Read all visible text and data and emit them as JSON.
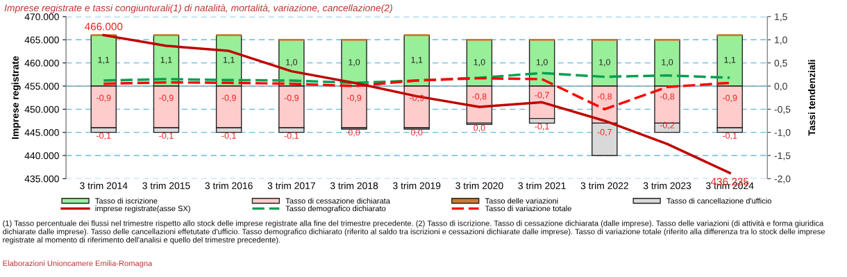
{
  "chart_data": {
    "type": "bar",
    "stacked": true,
    "title": "Imprese registrate e tassi congiunturali(1) di natalità, mortalità, variazione, cancellazione(2)",
    "ylabel": "Imprese registrate",
    "y2label": "Tassi tendenziali",
    "categories": [
      "3 trim 2014",
      "3 trim 2015",
      "3 trim 2016",
      "3 trim 2017",
      "3 trim 2018",
      "3 trim 2019",
      "3 trim 2020",
      "3 trim 2021",
      "3 trim 2022",
      "3 trim 2023",
      "3 trim 2024"
    ],
    "series": [
      {
        "name": "Tasso di iscrizione",
        "axis": "y2",
        "color": "#99ee99",
        "values": [
          1.1,
          1.1,
          1.1,
          1.0,
          1.0,
          1.1,
          1.0,
          1.0,
          1.0,
          1.0,
          1.1
        ],
        "value_labels": [
          "1,1",
          "1,1",
          "1,1",
          "1,0",
          "1,0",
          "1,1",
          "1,0",
          "1,0",
          "1,0",
          "1,0",
          "1,1"
        ]
      },
      {
        "name": "Tasso di cessazione dichiarata",
        "axis": "y2",
        "color": "#ffcccc",
        "values": [
          -0.9,
          -0.9,
          -0.9,
          -0.9,
          -0.9,
          -0.9,
          -0.8,
          -0.7,
          -0.8,
          -0.8,
          -0.9
        ],
        "value_labels": [
          "-0,9",
          "-0,9",
          "-0,9",
          "-0,9",
          "-0,9",
          "-0,9",
          "-0,8",
          "-0,7",
          "-0,8",
          "-0,8",
          "-0,9"
        ]
      },
      {
        "name": "Tasso delle variazioni",
        "axis": "y2",
        "color": "#cc7a29",
        "values": [
          0.0,
          0.0,
          0.0,
          0.0,
          0.0,
          0.0,
          0.0,
          0.0,
          0.0,
          0.0,
          0.0
        ]
      },
      {
        "name": "Tasso di cancellazione d'ufficio",
        "axis": "y2",
        "color": "#d9d9d9",
        "values": [
          -0.1,
          -0.1,
          -0.1,
          -0.1,
          -0.03,
          -0.03,
          -0.03,
          -0.1,
          -0.7,
          -0.2,
          -0.1
        ],
        "value_labels": [
          "-0,1",
          "-0,1",
          "-0,1",
          "-0,1",
          "0,0",
          "0,0",
          "0,0",
          "-0,1",
          "-0,7",
          "-0,2",
          "-0,1"
        ]
      },
      {
        "name": "imprese registrate(asse SX)",
        "type": "line",
        "axis": "y",
        "color": "#c00000",
        "line_style": "solid",
        "values": [
          466000,
          463700,
          462600,
          458200,
          455700,
          452800,
          450500,
          451500,
          447500,
          442500,
          436235
        ]
      },
      {
        "name": "Tasso demografico dichiarato",
        "type": "line",
        "axis": "y2",
        "color": "#00a050",
        "line_style": "dashed",
        "values": [
          0.12,
          0.15,
          0.13,
          0.12,
          0.07,
          0.12,
          0.18,
          0.28,
          0.2,
          0.23,
          0.18
        ]
      },
      {
        "name": "Tasso di variazione totale",
        "type": "line",
        "axis": "y2",
        "color": "#ff0000",
        "line_style": "dashed",
        "values": [
          0.05,
          0.08,
          0.07,
          0.05,
          0.0,
          0.12,
          0.17,
          0.15,
          -0.5,
          -0.02,
          0.07
        ]
      }
    ],
    "ylim": [
      435000,
      470000
    ],
    "yticks": [
      {
        "value": 435000,
        "label": "435.000"
      },
      {
        "value": 440000,
        "label": "440.000"
      },
      {
        "value": 445000,
        "label": "445.000"
      },
      {
        "value": 450000,
        "label": "450.000"
      },
      {
        "value": 455000,
        "label": "455.000"
      },
      {
        "value": 460000,
        "label": "460.000"
      },
      {
        "value": 465000,
        "label": "465.000"
      },
      {
        "value": 470000,
        "label": "470.000"
      }
    ],
    "y2lim": [
      -2.0,
      1.5
    ],
    "y2ticks": [
      {
        "value": -2.0,
        "label": "-2,0"
      },
      {
        "value": -1.5,
        "label": "-1,5"
      },
      {
        "value": -1.0,
        "label": "-1,0"
      },
      {
        "value": -0.5,
        "label": "-0,5"
      },
      {
        "value": 0.0,
        "label": "0,0"
      },
      {
        "value": 0.5,
        "label": "0,5"
      },
      {
        "value": 1.0,
        "label": "1,0"
      },
      {
        "value": 1.5,
        "label": "1,5"
      }
    ],
    "grid": "y",
    "legend": "bottom",
    "marker": "none",
    "annotations": [
      {
        "text": "466.000",
        "x": "3 trim 2014",
        "y": 466000
      },
      {
        "text": "436.235",
        "x": "3 trim 2024",
        "y": 436235
      },
      "(1) Tasso percentuale dei flussi nel trimestre rispetto allo stock delle imprese registrate alla fine del trimestre precedente. (2) Tasso di iscrizione. Tasso di cessazione dichiarata (dalle imprese). Tasso delle variazioni (di attività e forma giuridica dichiarate dalle imprese). Tasso delle cancellazioni effetutate d'ufficio. Tasso demografico dichiarato (riferito al saldo tra iscrizioni e cessazioni dichiarate dalle imprese). Tasso di variazione totale (riferito alla differenza tra lo stock delle imprese registrate al momento di riferimento dell'analisi e quello del trimestre precedente).",
      "Elaborazioni Unioncamere Emilia-Romagna"
    ]
  }
}
